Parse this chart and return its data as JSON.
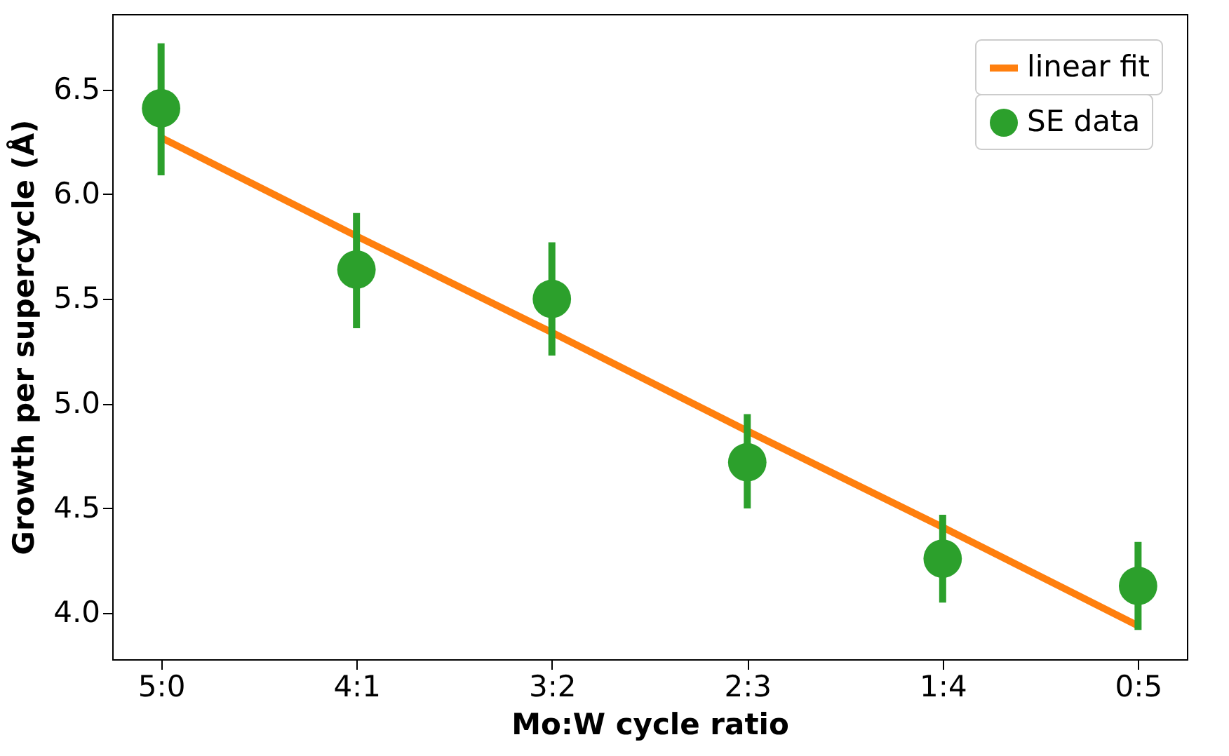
{
  "chart_data": {
    "type": "scatter",
    "xlabel": "Mo:W cycle ratio",
    "ylabel": "Growth per supercycle (Å)",
    "categories": [
      "5:0",
      "4:1",
      "3:2",
      "2:3",
      "1:4",
      "0:5"
    ],
    "series": [
      {
        "name": "linear fit",
        "type": "line",
        "color": "#ff7f0e",
        "marker": "none",
        "values": [
          6.27,
          5.8,
          5.34,
          4.87,
          4.41,
          3.94
        ]
      },
      {
        "name": "SE data",
        "marker": "circle",
        "color": "#2ca02c",
        "values": [
          6.41,
          5.64,
          5.5,
          4.72,
          4.26,
          4.13
        ],
        "errors": [
          [
            6.09,
            6.72
          ],
          [
            5.36,
            5.91
          ],
          [
            5.23,
            5.77
          ],
          [
            4.5,
            4.95
          ],
          [
            4.05,
            4.47
          ],
          [
            3.92,
            4.34
          ]
        ]
      }
    ],
    "ylim": [
      3.78,
      6.86
    ],
    "yticks": [
      {
        "value": 4,
        "label": "4.0"
      },
      {
        "value": 4.5,
        "label": "4.5"
      },
      {
        "value": 5,
        "label": "5.0"
      },
      {
        "value": 5.5,
        "label": "5.5"
      },
      {
        "value": 6,
        "label": "6.0"
      },
      {
        "value": 6.5,
        "label": "6.5"
      }
    ],
    "grid": false,
    "legend": "top right"
  }
}
